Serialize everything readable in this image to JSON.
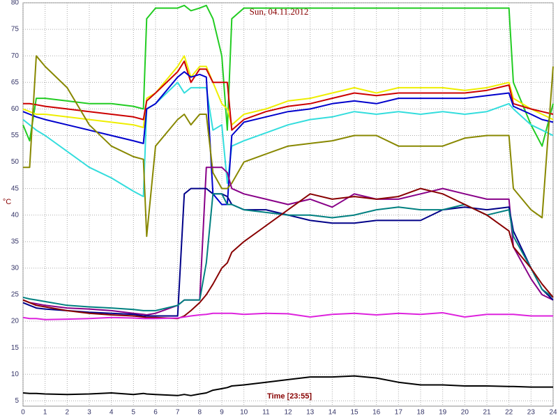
{
  "chart_data": {
    "type": "line",
    "title": "Sun, 04.11.2012",
    "x_label": "Time [23:55]",
    "y_label": "°C",
    "x": [
      0,
      0.3,
      0.6,
      1,
      2,
      3,
      4,
      5,
      5.45,
      5.6,
      6,
      7,
      7.3,
      7.6,
      8,
      8.3,
      8.6,
      9,
      9.25,
      9.45,
      10,
      11,
      12,
      13,
      14,
      15,
      16,
      17,
      18,
      19,
      20,
      21,
      22,
      22.2,
      23,
      23.5,
      24
    ],
    "xlim": [
      0,
      24
    ],
    "ylim": [
      4,
      80
    ],
    "xticks": [
      0,
      1,
      2,
      3,
      4,
      5,
      6,
      7,
      8,
      9,
      10,
      11,
      12,
      13,
      14,
      15,
      16,
      17,
      18,
      19,
      20,
      21,
      22,
      23,
      24
    ],
    "yticks": [
      5,
      10,
      15,
      20,
      25,
      30,
      35,
      40,
      45,
      50,
      55,
      60,
      65,
      70,
      75,
      80
    ],
    "grid": true,
    "series": [
      {
        "color": "#22cc22",
        "values": [
          57,
          54,
          62,
          62,
          61.5,
          61,
          61,
          60.5,
          60,
          77,
          79,
          79,
          79.5,
          78.5,
          79,
          79.5,
          77,
          70,
          56,
          77,
          79,
          79,
          79,
          79,
          79,
          79,
          79,
          79,
          79,
          79,
          79,
          79,
          79,
          65,
          57,
          53,
          61
        ]
      },
      {
        "color": "#eeee00",
        "values": [
          60,
          59.5,
          59,
          59,
          58.5,
          58,
          57.5,
          57,
          56.5,
          62,
          63,
          68,
          70,
          66,
          68,
          68,
          65,
          61,
          60,
          57,
          59,
          60,
          61.5,
          62,
          63,
          64,
          63,
          64,
          64,
          64,
          63.5,
          64,
          65,
          62,
          60,
          59,
          58
        ]
      },
      {
        "color": "#cc0000",
        "values": [
          61,
          61,
          60.8,
          60.5,
          60,
          59.5,
          59,
          58.5,
          58,
          61.5,
          63,
          67,
          69,
          65,
          67.5,
          67.5,
          65,
          65,
          65,
          56,
          58,
          59.5,
          60.5,
          61,
          62,
          63,
          62.5,
          63,
          63,
          63,
          63,
          63.5,
          64.5,
          61,
          60,
          59.5,
          59
        ]
      },
      {
        "color": "#33dddd",
        "values": [
          58,
          57,
          56,
          55,
          52,
          49,
          47,
          44.5,
          43.5,
          60,
          61,
          65,
          63,
          64,
          64,
          64,
          56,
          57,
          46,
          53,
          54,
          55.5,
          57,
          58,
          58.5,
          59.5,
          59,
          59.5,
          59,
          59.5,
          59,
          59.5,
          61,
          60,
          57,
          56,
          55
        ]
      },
      {
        "color": "#0000cc",
        "values": [
          59.5,
          59,
          58.5,
          58,
          57,
          56,
          55,
          54,
          53.5,
          60,
          61,
          66,
          67,
          66,
          66.5,
          66,
          44,
          42,
          42,
          55,
          57.5,
          58.5,
          59.5,
          60,
          61,
          61.5,
          61,
          62,
          62,
          62,
          62,
          62.5,
          63,
          60.5,
          59,
          58,
          57.5
        ]
      },
      {
        "color": "#888800",
        "values": [
          49,
          49,
          70,
          68,
          64,
          57,
          53,
          51,
          50.5,
          36,
          53,
          58,
          59,
          57,
          59,
          59,
          48,
          45,
          45,
          46,
          50,
          51.5,
          53,
          53.5,
          54,
          55,
          55,
          53,
          53,
          53,
          54.5,
          55,
          55,
          45,
          41,
          39.5,
          68
        ]
      },
      {
        "color": "#880088",
        "values": [
          24,
          23.5,
          23.3,
          23,
          22.5,
          22.3,
          22,
          21.5,
          21.3,
          21.2,
          21.5,
          23,
          24,
          24,
          24,
          49,
          49,
          49,
          48,
          45,
          44,
          43,
          42,
          43,
          41.5,
          44,
          43,
          43,
          44,
          45,
          44,
          43,
          43,
          34,
          28,
          25,
          24
        ]
      },
      {
        "color": "#000088",
        "values": [
          23.5,
          23,
          22.5,
          22.3,
          22,
          21.7,
          21.5,
          21.3,
          21,
          21,
          21,
          21,
          44,
          45,
          45,
          45,
          44,
          44,
          43.5,
          42,
          41,
          41,
          40,
          39,
          38.5,
          38.5,
          39,
          39,
          39,
          41,
          41.5,
          41,
          41.5,
          37,
          30,
          26,
          24
        ]
      },
      {
        "color": "#008080",
        "values": [
          24.5,
          24.2,
          24,
          23.7,
          23,
          22.7,
          22.5,
          22.2,
          22,
          22,
          22,
          23,
          24,
          24,
          24,
          31,
          44,
          44,
          42,
          42,
          41,
          40.5,
          40,
          40,
          39.5,
          40,
          41,
          41.5,
          41,
          41,
          42,
          40,
          41,
          36,
          30,
          26,
          24.5
        ]
      },
      {
        "color": "#880000",
        "values": [
          24,
          23.5,
          23,
          22.7,
          22,
          21.5,
          21.2,
          21,
          20.8,
          20.7,
          20.7,
          20.5,
          21,
          22,
          23.5,
          25,
          27,
          30,
          31,
          33,
          35,
          38,
          41,
          44,
          43,
          43.5,
          43,
          43.5,
          45,
          44,
          42,
          40,
          37,
          34,
          30,
          27,
          24.5
        ]
      },
      {
        "color": "#dd22dd",
        "values": [
          20.7,
          20.5,
          20.5,
          20.3,
          20.4,
          20.5,
          20.7,
          20.6,
          20.5,
          20.5,
          20.5,
          20.6,
          20.8,
          21,
          21.2,
          21.3,
          21.5,
          21.5,
          21.5,
          21.5,
          21.3,
          21.5,
          21.4,
          20.8,
          21.3,
          21.5,
          21.2,
          21.5,
          21.3,
          21.6,
          20.8,
          21.3,
          21.3,
          21.3,
          21,
          21,
          21
        ]
      },
      {
        "color": "#000000",
        "values": [
          6.5,
          6.4,
          6.4,
          6.3,
          6.2,
          6.3,
          6.5,
          6.2,
          6.4,
          6.3,
          6.2,
          6,
          6.2,
          6,
          6.3,
          6.5,
          7,
          7.3,
          7.5,
          7.8,
          8,
          8.5,
          9,
          9.5,
          9.5,
          9.7,
          9.3,
          8.5,
          8,
          8,
          7.8,
          7.8,
          7.7,
          7.7,
          7.6,
          7.6,
          7.6
        ]
      }
    ]
  }
}
